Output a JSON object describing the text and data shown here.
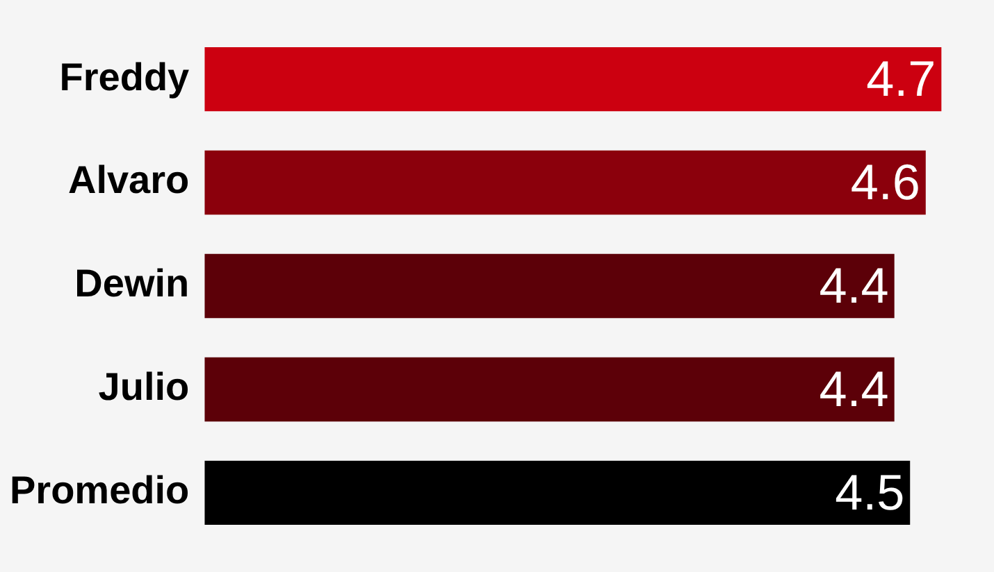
{
  "chart_data": {
    "type": "bar",
    "orientation": "horizontal",
    "categories": [
      "Freddy",
      "Alvaro",
      "Dewin",
      "Julio",
      "Promedio"
    ],
    "values": [
      4.7,
      4.6,
      4.4,
      4.4,
      4.5
    ],
    "colors": [
      "#cc0010",
      "#8b000c",
      "#5c0008",
      "#5c0008",
      "#000000"
    ],
    "data_labels": true,
    "legend": false
  }
}
